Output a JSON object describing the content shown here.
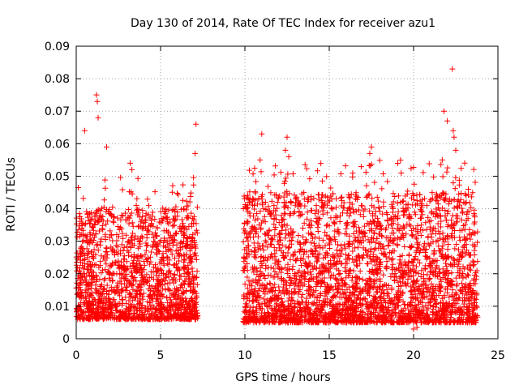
{
  "chart_data": {
    "type": "scatter",
    "title": "Day 130 of 2014, Rate Of TEC Index for receiver azu1",
    "xlabel": "GPS time / hours",
    "ylabel": "ROTI / TECUs",
    "xlim": [
      0,
      25
    ],
    "ylim": [
      0,
      0.09
    ],
    "xticks": [
      0,
      5,
      10,
      15,
      20,
      25
    ],
    "xtick_labels": [
      "0",
      "5",
      "10",
      "15",
      "20",
      "25"
    ],
    "yticks": [
      0,
      0.01,
      0.02,
      0.03,
      0.04,
      0.05,
      0.06,
      0.07,
      0.08,
      0.09
    ],
    "ytick_labels": [
      "0",
      "0.01",
      "0.02",
      "0.03",
      "0.04",
      "0.05",
      "0.06",
      "0.07",
      "0.08",
      "0.09"
    ],
    "grid": true,
    "marker": "+",
    "color": "#ff0000",
    "series": [
      {
        "name": "ROTI",
        "segments": [
          {
            "x_range": [
              0.0,
              7.2
            ],
            "typical_range": [
              0.006,
              0.04
            ]
          },
          {
            "x_range": [
              9.9,
              23.8
            ],
            "typical_range": [
              0.005,
              0.045
            ]
          }
        ],
        "notable_points": [
          {
            "x": 0.5,
            "y": 0.064
          },
          {
            "x": 1.2,
            "y": 0.075
          },
          {
            "x": 1.25,
            "y": 0.073
          },
          {
            "x": 1.3,
            "y": 0.068
          },
          {
            "x": 1.8,
            "y": 0.059
          },
          {
            "x": 3.2,
            "y": 0.054
          },
          {
            "x": 3.3,
            "y": 0.052
          },
          {
            "x": 7.1,
            "y": 0.066
          },
          {
            "x": 7.05,
            "y": 0.057
          },
          {
            "x": 11.0,
            "y": 0.063
          },
          {
            "x": 10.9,
            "y": 0.055
          },
          {
            "x": 12.5,
            "y": 0.062
          },
          {
            "x": 12.4,
            "y": 0.058
          },
          {
            "x": 12.6,
            "y": 0.056
          },
          {
            "x": 17.5,
            "y": 0.059
          },
          {
            "x": 17.4,
            "y": 0.057
          },
          {
            "x": 21.8,
            "y": 0.07
          },
          {
            "x": 22.0,
            "y": 0.067
          },
          {
            "x": 22.3,
            "y": 0.083
          },
          {
            "x": 22.35,
            "y": 0.064
          },
          {
            "x": 22.4,
            "y": 0.062
          },
          {
            "x": 22.5,
            "y": 0.058
          },
          {
            "x": 21.7,
            "y": 0.055
          },
          {
            "x": 20.0,
            "y": 0.003
          },
          {
            "x": 20.2,
            "y": 0.0035
          }
        ]
      }
    ]
  }
}
